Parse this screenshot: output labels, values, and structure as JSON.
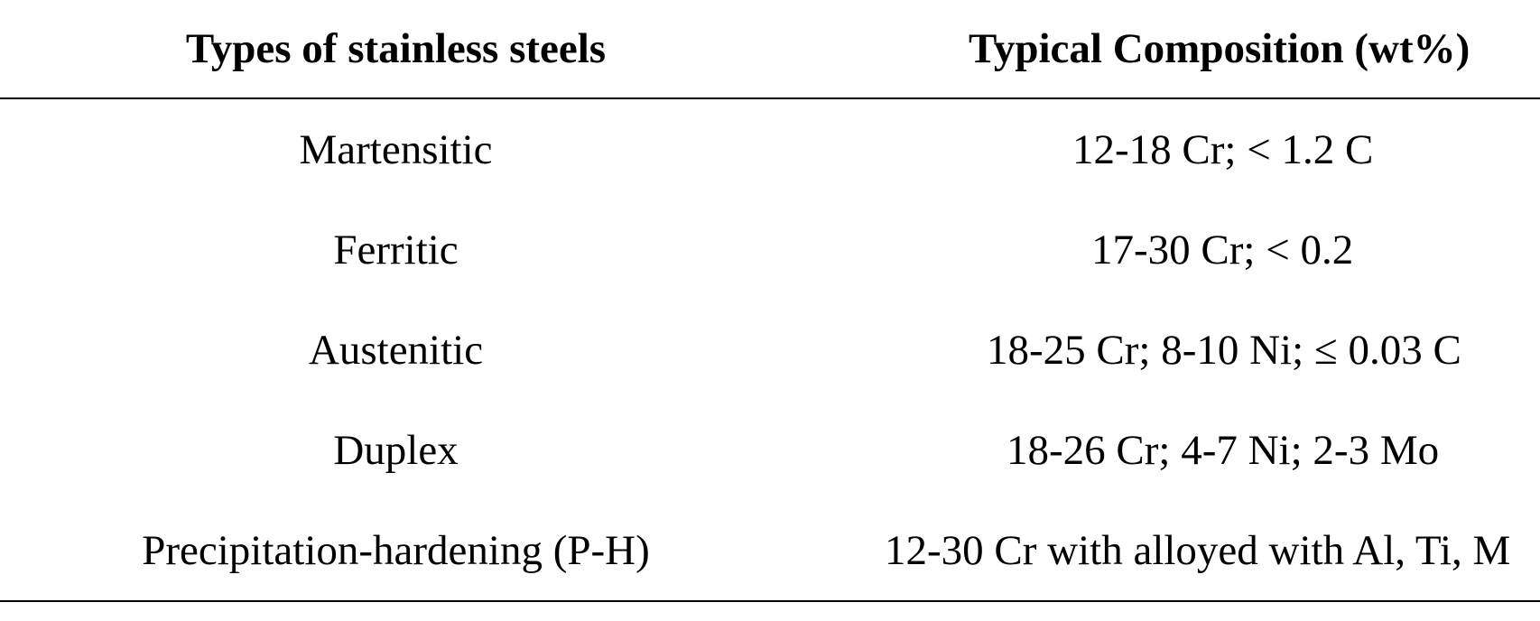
{
  "table": {
    "headers": [
      "Types of stainless steels",
      "Typical Composition (wt%)"
    ],
    "rows": [
      [
        "Martensitic",
        "12-18 Cr; < 1.2 C"
      ],
      [
        "Ferritic",
        "17-30 Cr; < 0.2"
      ],
      [
        "Austenitic",
        "18-25 Cr; 8-10 Ni; ≤ 0.03 C"
      ],
      [
        "Duplex",
        "18-26 Cr; 4-7 Ni; 2-3 Mo"
      ],
      [
        "Precipitation-hardening (P-H)",
        "12-30 Cr with alloyed with Al, Ti, M"
      ]
    ]
  }
}
